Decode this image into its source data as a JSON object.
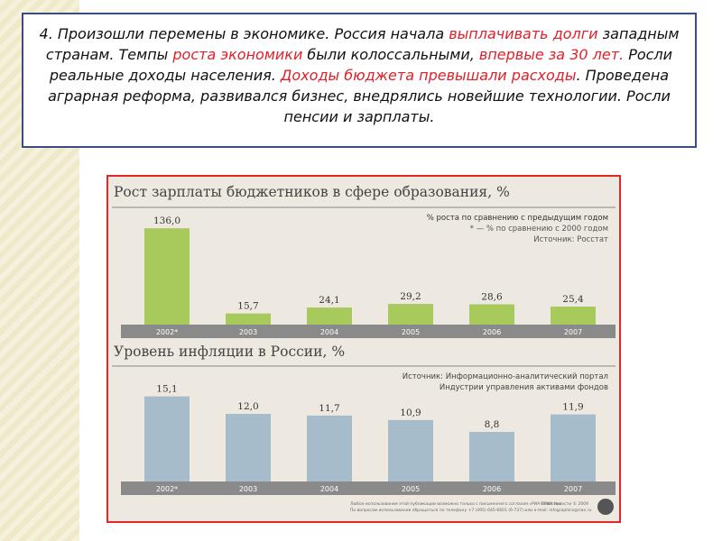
{
  "slide": {
    "text_segments": [
      {
        "t": "4. Произошли перемены в экономике. Россия начала ",
        "hl": false
      },
      {
        "t": "выплачивать долги",
        "hl": true
      },
      {
        "t": " западным странам. Темпы ",
        "hl": false
      },
      {
        "t": "роста экономики",
        "hl": true
      },
      {
        "t": " были колоссальными, ",
        "hl": false
      },
      {
        "t": "впервые за 30 лет.",
        "hl": true
      },
      {
        "t": " Росли реальные доходы населения. ",
        "hl": false
      },
      {
        "t": "Доходы бюджета превышали расходы",
        "hl": true
      },
      {
        "t": ". Проведена аграрная реформа, развивался бизнес, внедрялись новейшие технологии. Росли пенсии и зарплаты.",
        "hl": false
      }
    ],
    "highlight_color": "#e0202a"
  },
  "chart_data": [
    {
      "type": "bar",
      "title": "Рост зарплаты бюджетников в сфере образования, %",
      "categories": [
        "2002*",
        "2003",
        "2004",
        "2005",
        "2006",
        "2007"
      ],
      "values": [
        136.0,
        15.7,
        24.1,
        29.2,
        28.6,
        25.4
      ],
      "value_labels": [
        "136,0",
        "15,7",
        "24,1",
        "29,2",
        "28,6",
        "25,4"
      ],
      "ylim": [
        0,
        140
      ],
      "color": "#a8c95c",
      "notes": [
        "% роста по сравнению с предыдущим годом",
        "* — % по сравнению с 2000 годом",
        "Источник: Росстат"
      ]
    },
    {
      "type": "bar",
      "title": "Уровень инфляции в России, %",
      "categories": [
        "2002*",
        "2003",
        "2004",
        "2005",
        "2006",
        "2007"
      ],
      "values": [
        15.1,
        12.0,
        11.7,
        10.9,
        8.8,
        11.9
      ],
      "value_labels": [
        "15,1",
        "12,0",
        "11,7",
        "10,9",
        "8,8",
        "11,9"
      ],
      "ylim": [
        0,
        16
      ],
      "color": "#a6bccb",
      "notes": [
        "Источник: Информационно-аналитический портал",
        "Индустрии управления активами фондов"
      ]
    }
  ],
  "footer": {
    "line1": "Любое использование этой публикации возможно только с письменного согласия «РИА Новости»",
    "line2": "По вопросам использования обращаться по телефону +7 (495) 645-6601 (6-737) или e-mail: infographics@rian.ru",
    "copyright": "©РИА Новости © 2009"
  }
}
